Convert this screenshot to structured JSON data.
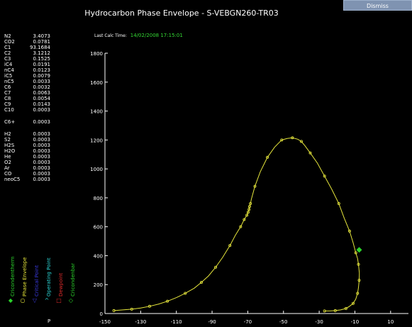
{
  "title": "Hydrocarbon Phase Envelope - S-VEBGN260-TR03",
  "dismiss_label": "Dismiss",
  "last_calc": {
    "label": "Last Calc Time:",
    "value": "14/02/2008 17:15:01"
  },
  "composition": [
    {
      "name": "N2",
      "value": "3.4073"
    },
    {
      "name": "CO2",
      "value": "0.0781"
    },
    {
      "name": "C1",
      "value": "93.1684"
    },
    {
      "name": "C2",
      "value": "3.1212"
    },
    {
      "name": "C3",
      "value": "0.1525"
    },
    {
      "name": "iC4",
      "value": "0.0191"
    },
    {
      "name": "nC4",
      "value": "0.0123"
    },
    {
      "name": "iC5",
      "value": "0.0079"
    },
    {
      "name": "nC5",
      "value": "0.0033"
    },
    {
      "name": "C6",
      "value": "0.0032"
    },
    {
      "name": "C7",
      "value": "0.0063"
    },
    {
      "name": "C8",
      "value": "0.0054"
    },
    {
      "name": "C9",
      "value": "0.0143"
    },
    {
      "name": "C10",
      "value": "0.0003"
    },
    {
      "name": "C6+",
      "value": "0.0003"
    },
    {
      "name": "H2",
      "value": "0.0003"
    },
    {
      "name": "S2",
      "value": "0.0003"
    },
    {
      "name": "H2S",
      "value": "0.0003"
    },
    {
      "name": "H2O",
      "value": "0.0003"
    },
    {
      "name": "He",
      "value": "0.0003"
    },
    {
      "name": "O2",
      "value": "0.0003"
    },
    {
      "name": "Ar",
      "value": "0.0003"
    },
    {
      "name": "CO",
      "value": "0.0003"
    },
    {
      "name": "neoC5",
      "value": "0.0003"
    }
  ],
  "legend": [
    {
      "label": "Cricondentherm",
      "color": "#2bd52b",
      "symbol": "◆"
    },
    {
      "label": "Phase Envelope",
      "color": "#e8e83a",
      "symbol": "○"
    },
    {
      "label": "Critical Point",
      "color": "#3a3ae0",
      "symbol": "▽"
    },
    {
      "label": "Operating Point",
      "color": "#2bd5d5",
      "symbol": "^"
    },
    {
      "label": "Dewpoint",
      "color": "#e02b2b",
      "symbol": "□"
    },
    {
      "label": "Cricondenbar",
      "color": "#2bd52b",
      "symbol": "◇"
    }
  ],
  "p_label": "P",
  "colors": {
    "curve": "#e6e63c",
    "axis": "#ffffff",
    "cricondentherm": "#2bd52b"
  },
  "chart_data": {
    "type": "line",
    "title": "",
    "xlabel": "",
    "ylabel": "",
    "xlim": [
      -150,
      20
    ],
    "ylim": [
      0,
      1800
    ],
    "x_ticks": [
      "-150",
      "-130",
      "-110",
      "-90",
      "-70",
      "-50",
      "-30",
      "-10",
      "10"
    ],
    "y_ticks": [
      "0",
      "200",
      "400",
      "600",
      "800",
      "1000",
      "1200",
      "1400",
      "1600",
      "1800"
    ],
    "x_tick_values": [
      -150,
      -130,
      -110,
      -90,
      -70,
      -50,
      -30,
      -10,
      10
    ],
    "y_tick_values": [
      0,
      200,
      400,
      600,
      800,
      1000,
      1200,
      1400,
      1600,
      1800
    ],
    "series": [
      {
        "values_x": [
          -145,
          -140,
          -135,
          -130,
          -125,
          -120,
          -115,
          -110,
          -105,
          -100,
          -96,
          -92,
          -88,
          -84,
          -80,
          -77,
          -74,
          -72,
          -70.5,
          -69.8,
          -69.3,
          -69,
          -68.5,
          -68,
          -66,
          -63,
          -59,
          -55,
          -51,
          -48,
          -45,
          -42,
          -40,
          -38,
          -35,
          -31,
          -27,
          -23,
          -19,
          -16,
          -13,
          -11,
          -9.5,
          -8.5,
          -8,
          -7.5,
          -7.6,
          -8,
          -8.5,
          -9.5,
          -11,
          -13,
          -15,
          -18,
          -21,
          -24,
          -27
        ],
        "values_y": [
          20,
          25,
          30,
          38,
          50,
          65,
          85,
          110,
          140,
          175,
          215,
          260,
          320,
          390,
          470,
          540,
          600,
          650,
          680,
          700,
          720,
          740,
          760,
          790,
          880,
          980,
          1080,
          1150,
          1200,
          1210,
          1215,
          1205,
          1190,
          1160,
          1110,
          1040,
          950,
          860,
          760,
          660,
          570,
          490,
          420,
          380,
          340,
          280,
          230,
          180,
          140,
          100,
          70,
          50,
          35,
          25,
          20,
          18,
          18
        ]
      }
    ],
    "cricondentherm": {
      "x": -7.6,
      "y": 440
    }
  }
}
